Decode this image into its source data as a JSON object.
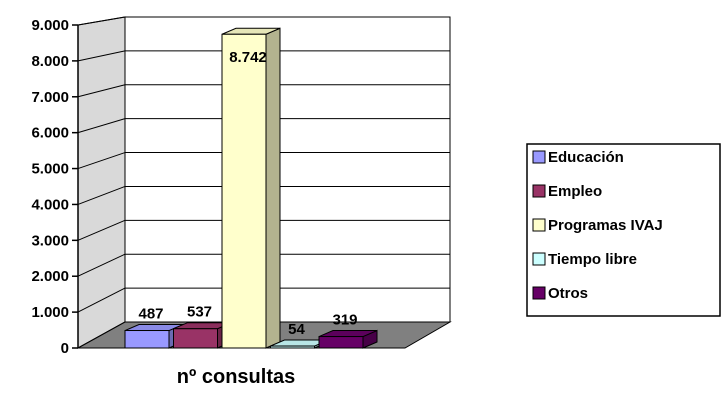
{
  "chart_data": {
    "type": "bar",
    "title": "",
    "xlabel": "nº consultas",
    "ylabel": "",
    "ylim": [
      0,
      9000
    ],
    "yticks": [
      "0",
      "1.000",
      "2.000",
      "3.000",
      "4.000",
      "5.000",
      "6.000",
      "7.000",
      "8.000",
      "9.000"
    ],
    "grid": true,
    "legend_position": "right",
    "series": [
      {
        "name": "Educación",
        "value": 487,
        "label": "487",
        "color": "#9999ff"
      },
      {
        "name": "Empleo",
        "value": 537,
        "label": "537",
        "color": "#993366"
      },
      {
        "name": "Programas IVAJ",
        "value": 8742,
        "label": "8.742",
        "color": "#ffffcc"
      },
      {
        "name": "Tiempo libre",
        "value": 54,
        "label": "54",
        "color": "#ccffff"
      },
      {
        "name": "Otros",
        "value": 319,
        "label": "319",
        "color": "#660066"
      }
    ]
  }
}
